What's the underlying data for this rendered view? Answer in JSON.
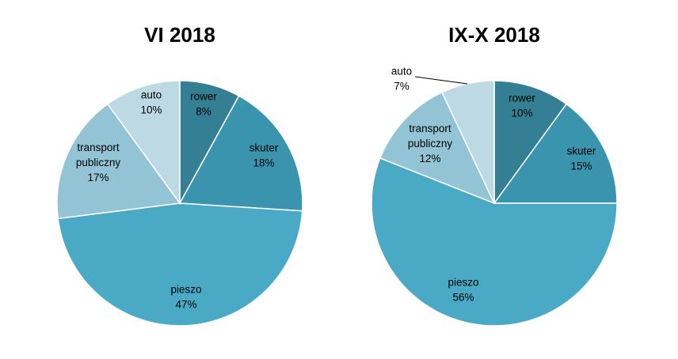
{
  "chart_data": [
    {
      "type": "pie",
      "title": "VI 2018",
      "slices": [
        {
          "name": "rower",
          "value": 8,
          "label": "8%"
        },
        {
          "name": "skuter",
          "value": 18,
          "label": "18%"
        },
        {
          "name": "pieszo",
          "value": 47,
          "label": "47%"
        },
        {
          "name": "transport publiczny",
          "value": 17,
          "label": "17%"
        },
        {
          "name": "auto",
          "value": 10,
          "label": "10%"
        }
      ],
      "start": "12 o'clock",
      "direction": "clockwise"
    },
    {
      "type": "pie",
      "title": "IX-X 2018",
      "slices": [
        {
          "name": "rower",
          "value": 10,
          "label": "10%"
        },
        {
          "name": "skuter",
          "value": 15,
          "label": "15%"
        },
        {
          "name": "pieszo",
          "value": 56,
          "label": "56%"
        },
        {
          "name": "transport publiczny",
          "value": 12,
          "label": "12%"
        },
        {
          "name": "auto",
          "value": 7,
          "label": "7%"
        }
      ],
      "start": "12 o'clock",
      "direction": "clockwise"
    }
  ],
  "colors": {
    "rower": "#347f94",
    "skuter": "#3a94ae",
    "pieszo": "#4aaac5",
    "transport publiczny": "#92c4d5",
    "auto": "#bcd9e4"
  }
}
